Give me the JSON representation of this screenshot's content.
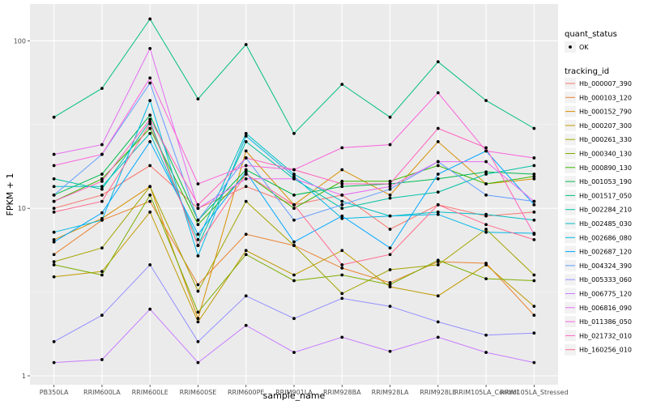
{
  "chart_data": {
    "type": "line",
    "xlabel": "sample_name",
    "ylabel": "FPKM + 1",
    "y_scale": "log10",
    "ylim": [
      1,
      150
    ],
    "y_ticks": [
      1,
      10,
      100
    ],
    "y_tick_labels": [
      "1",
      "10",
      "100"
    ],
    "grid": true,
    "legend_position": "right",
    "categories": [
      "PB350LA",
      "RRIM600LA",
      "RRIM600LE",
      "RRIM600SE",
      "RRIM600PE",
      "RRIM901LA",
      "RRIM928BA",
      "RRIM928LA",
      "RRIM928LE",
      "RRIM105LA_Control",
      "RRIM105LA_Stressed"
    ],
    "shape_legend": {
      "title": "quant_status",
      "items": [
        "OK"
      ]
    },
    "color_legend_title": "tracking_id",
    "series": [
      {
        "name": "Hb_000007_390",
        "color": "#F8766D",
        "values": [
          10,
          12,
          18,
          10,
          13.5,
          10.5,
          12,
          7.5,
          10.5,
          9,
          9.5
        ]
      },
      {
        "name": "Hb_000103_120",
        "color": "#EA8331",
        "values": [
          5.3,
          8.5,
          11,
          3.5,
          7,
          6,
          4.4,
          3.6,
          4.8,
          4.7,
          2.3
        ]
      },
      {
        "name": "Hb_000152_790",
        "color": "#D89000",
        "values": [
          6.5,
          8.7,
          13.5,
          2.2,
          22,
          10.5,
          17,
          12,
          25,
          14,
          15
        ]
      },
      {
        "name": "Hb_000207_300",
        "color": "#C09B00",
        "values": [
          3.9,
          4.2,
          9.5,
          2.1,
          5.6,
          4,
          5.6,
          3.4,
          3,
          4.6,
          2.6
        ]
      },
      {
        "name": "Hb_000261_330",
        "color": "#A3A500",
        "values": [
          4.8,
          5.8,
          13.5,
          3.2,
          11,
          6,
          3.1,
          4.3,
          4.6,
          7.5,
          4
        ]
      },
      {
        "name": "Hb_000340_130",
        "color": "#7CAE00",
        "values": [
          4.6,
          4,
          12,
          2.4,
          5.3,
          3.7,
          4,
          3.5,
          4.9,
          3.8,
          3.7
        ]
      },
      {
        "name": "Hb_000890_130",
        "color": "#39B600",
        "values": [
          11,
          15,
          30,
          8,
          16,
          10,
          14.5,
          14.5,
          18,
          14,
          15.5
        ]
      },
      {
        "name": "Hb_001053_190",
        "color": "#00BB4E",
        "values": [
          12,
          16,
          36,
          8.5,
          17,
          12,
          13.5,
          14,
          15,
          16.5,
          16
        ]
      },
      {
        "name": "Hb_001517_050",
        "color": "#00BF7D",
        "values": [
          35,
          52,
          135,
          45,
          95,
          28,
          55,
          35,
          75,
          44,
          30
        ]
      },
      {
        "name": "Hb_002284_210",
        "color": "#00C1A3",
        "values": [
          15,
          13,
          33,
          6,
          25,
          15,
          10,
          11.5,
          12.5,
          16,
          18
        ]
      },
      {
        "name": "Hb_002485_030",
        "color": "#00BFC4",
        "values": [
          13.5,
          13.5,
          28,
          6.5,
          28,
          16,
          11,
          9,
          9.5,
          9.2,
          8.5
        ]
      },
      {
        "name": "Hb_002686_080",
        "color": "#00B8E7",
        "values": [
          7.2,
          8.5,
          44,
          5.2,
          27,
          15.5,
          8.7,
          9,
          9.2,
          7.2,
          7.1
        ]
      },
      {
        "name": "Hb_002687_120",
        "color": "#00A9FF",
        "values": [
          6.3,
          9.4,
          25,
          7,
          16.5,
          6.3,
          9,
          5.8,
          16,
          22,
          10.5
        ]
      },
      {
        "name": "Hb_004324_390",
        "color": "#619CFF",
        "values": [
          12,
          21,
          56,
          8.5,
          20,
          8.5,
          10.5,
          13,
          19,
          12,
          11
        ]
      },
      {
        "name": "Hb_005333_060",
        "color": "#9590FF",
        "values": [
          1.6,
          2.3,
          4.6,
          1.6,
          3,
          2.2,
          2.9,
          2.6,
          2.1,
          1.75,
          1.8
        ]
      },
      {
        "name": "Hb_006775_120",
        "color": "#C77CFF",
        "values": [
          1.2,
          1.25,
          2.5,
          1.2,
          2,
          1.38,
          1.7,
          1.4,
          1.7,
          1.38,
          1.2
        ]
      },
      {
        "name": "Hb_006816_090",
        "color": "#E76BF3",
        "values": [
          21,
          24,
          90,
          10,
          15,
          15,
          12,
          13.5,
          19,
          19,
          11
        ]
      },
      {
        "name": "Hb_011386_050",
        "color": "#FA62DB",
        "values": [
          18,
          21,
          60,
          14,
          18,
          17,
          23,
          24,
          49,
          22,
          20
        ]
      },
      {
        "name": "Hb_021732_010",
        "color": "#FF62BC",
        "values": [
          11,
          14.5,
          34,
          10.5,
          20,
          17,
          14,
          14,
          30,
          23,
          7
        ]
      },
      {
        "name": "Hb_160256_010",
        "color": "#FF6C91",
        "values": [
          9.5,
          11,
          32,
          6,
          16,
          10.5,
          4.6,
          5.3,
          10.5,
          8,
          6.5
        ]
      }
    ]
  }
}
